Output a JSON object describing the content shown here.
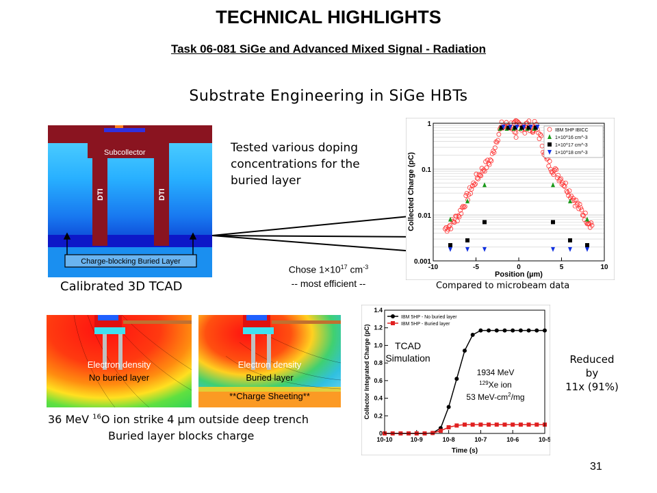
{
  "slide": {
    "title": "TECHNICAL HIGHLIGHTS",
    "subtitle": "Task 06-081 SiGe and Advanced Mixed Signal - Radiation",
    "heading": "Substrate Engineering in SiGe HBTs",
    "page_number": "31"
  },
  "tcad": {
    "label_subcollector": "Subcollector",
    "label_dti": "DTI",
    "label_buried": "Charge-blocking Buried Layer",
    "caption": "Calibrated 3D TCAD"
  },
  "notes": {
    "tested": [
      "Tested various doping",
      "concentrations for the",
      "buried layer"
    ],
    "chose_prefix": "Chose 1×10",
    "chose_exp": "17",
    "chose_unit": " cm",
    "chose_unit_exp": "-3",
    "efficient": "-- most efficient --",
    "compared": "Compared to microbeam data",
    "reduced": [
      "Reduced",
      "by",
      "11x (91%)"
    ]
  },
  "strike": {
    "panel1_line1": "Electron density",
    "panel1_line2": "No buried layer",
    "panel2_line1": "Electron density",
    "panel2_line2": "Buried layer",
    "sheeting": "**Charge Sheeting**",
    "caption1_a": "36 MeV ",
    "caption1_sup": "16",
    "caption1_b": "O ion strike 4 µm outside deep trench",
    "caption2": "Buried layer blocks charge"
  },
  "chart_data": [
    {
      "type": "scatter",
      "xlabel": "Position (µm)",
      "ylabel": "Collected Charge (pC)",
      "yscale": "log",
      "xlim": [
        -10,
        10
      ],
      "ylim": [
        0.001,
        1
      ],
      "x_ticks": [
        "-10",
        "-5",
        "0",
        "5",
        "10"
      ],
      "y_ticks": [
        "1",
        "0.1",
        "0.01",
        "0.001"
      ],
      "grid": true,
      "legend_position": "top-right",
      "series": [
        {
          "name": "IBM 5HP IBICC",
          "color": "#ff3030",
          "marker": "circle-open",
          "profile": [
            [
              -8.6,
              0.005
            ],
            [
              -8,
              0.006
            ],
            [
              -7,
              0.01
            ],
            [
              -6,
              0.025
            ],
            [
              -5,
              0.06
            ],
            [
              -4,
              0.11
            ],
            [
              -3.2,
              0.16
            ],
            [
              -2.6,
              0.45
            ],
            [
              -2,
              0.85
            ],
            [
              -1,
              0.9
            ],
            [
              0,
              0.9
            ],
            [
              1,
              0.9
            ],
            [
              2,
              0.85
            ],
            [
              2.6,
              0.45
            ],
            [
              3.2,
              0.16
            ],
            [
              4,
              0.1
            ],
            [
              5,
              0.06
            ],
            [
              6,
              0.03
            ],
            [
              7,
              0.015
            ],
            [
              8,
              0.008
            ],
            [
              8.6,
              0.006
            ]
          ]
        },
        {
          "name": "1×10^16 cm^-3",
          "color": "#1a9a1a",
          "marker": "triangle-up",
          "x": [
            -8,
            -6,
            -4,
            4,
            6,
            8
          ],
          "y": [
            0.008,
            0.02,
            0.045,
            0.045,
            0.02,
            0.008
          ]
        },
        {
          "name": "1×10^17 cm^-3",
          "color": "#000000",
          "marker": "square",
          "x": [
            -8,
            -6,
            -4,
            4,
            6,
            8
          ],
          "y": [
            0.0022,
            0.0028,
            0.007,
            0.007,
            0.0028,
            0.0022
          ]
        },
        {
          "name": "1×10^18 cm^-3",
          "color": "#1030e0",
          "marker": "triangle-down",
          "x": [
            -8,
            -6,
            -4,
            4,
            6,
            8
          ],
          "y": [
            0.0018,
            0.0018,
            0.0018,
            0.0018,
            0.0018,
            0.0018
          ]
        }
      ],
      "peak_markers_y": 0.8
    },
    {
      "type": "line",
      "xlabel": "Time (s)",
      "ylabel": "Collector Integrated Charge (pC)",
      "xscale": "log",
      "xlim": [
        1e-10,
        1e-05
      ],
      "ylim": [
        0,
        1.4
      ],
      "x_ticks": [
        "10-10",
        "10-9",
        "10-8",
        "10-7",
        "10-6",
        "10-5"
      ],
      "y_ticks": [
        "0",
        "0.2",
        "0.4",
        "0.6",
        "0.8",
        "1.0",
        "1.2",
        "1.4"
      ],
      "legend_position": "top-left",
      "series": [
        {
          "name": "IBM 5HP - No buried layer",
          "color": "#000000",
          "x": [
            1e-10,
            1.78e-10,
            3.16e-10,
            5.62e-10,
            1e-09,
            1.78e-09,
            3.16e-09,
            5.62e-09,
            1e-08,
            1.78e-08,
            3.16e-08,
            5.62e-08,
            1e-07,
            1.78e-07,
            3.16e-07,
            5.62e-07,
            1e-06,
            1.78e-06,
            3.16e-06,
            5.62e-06,
            1e-05
          ],
          "y": [
            0,
            0,
            0,
            0,
            0,
            0,
            0.005,
            0.06,
            0.3,
            0.62,
            0.94,
            1.12,
            1.17,
            1.17,
            1.17,
            1.17,
            1.17,
            1.17,
            1.17,
            1.17,
            1.17
          ]
        },
        {
          "name": "IBM 5HP - Buried layer",
          "color": "#e02020",
          "x": [
            1e-10,
            1.78e-10,
            3.16e-10,
            5.62e-10,
            1e-09,
            1.78e-09,
            3.16e-09,
            5.62e-09,
            1e-08,
            1.78e-08,
            3.16e-08,
            5.62e-08,
            1e-07,
            1.78e-07,
            3.16e-07,
            5.62e-07,
            1e-06,
            1.78e-06,
            3.16e-06,
            5.62e-06,
            1e-05
          ],
          "y": [
            0,
            0,
            0,
            0,
            0,
            0,
            0.005,
            0.03,
            0.07,
            0.09,
            0.1,
            0.1,
            0.1,
            0.1,
            0.1,
            0.1,
            0.1,
            0.1,
            0.1,
            0.1,
            0.1
          ]
        }
      ],
      "annotations": [
        "TCAD",
        "Simulation",
        "1934 MeV",
        "129",
        "Xe ion",
        "53 MeV-cm",
        "2",
        "/mg"
      ]
    }
  ]
}
